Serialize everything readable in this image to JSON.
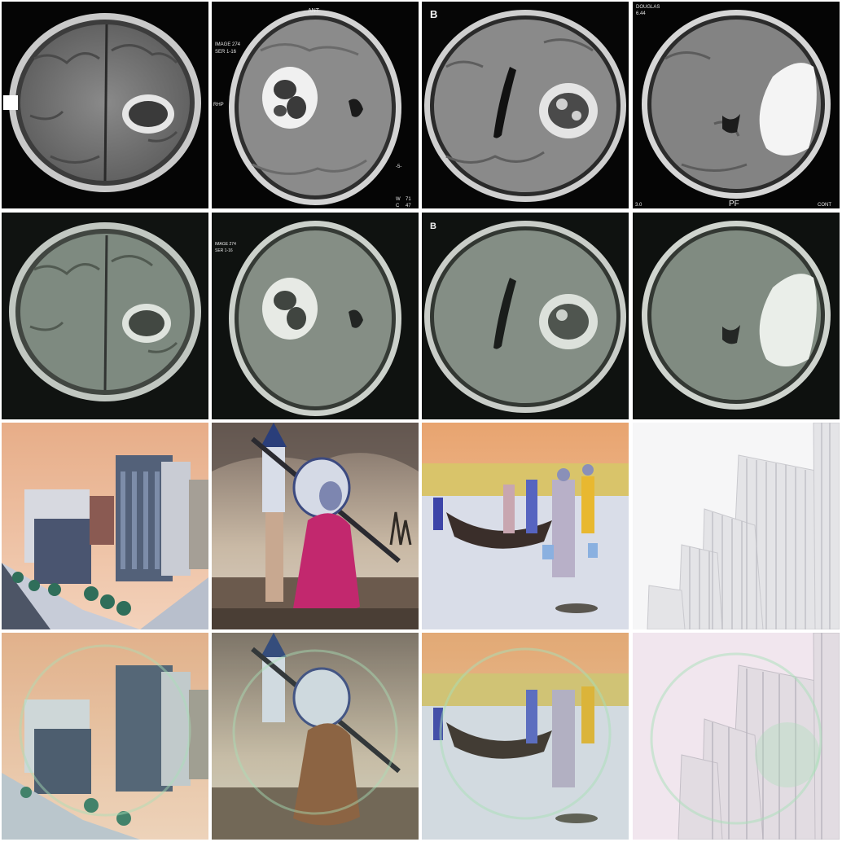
{
  "figure": {
    "rows": [
      {
        "row": "mri-original",
        "cells": [
          {
            "kind": "mri"
          },
          {
            "kind": "mri",
            "labels": {
              "ant": "ANT",
              "image": "IMAGE 274",
              "ser": "SER 1-16",
              "side": "RHP",
              "tick": "-5-",
              "w": "W",
              "w_val": "71",
              "c": "C",
              "c_val": "47"
            }
          },
          {
            "kind": "mri",
            "labels": {
              "panel": "B"
            }
          },
          {
            "kind": "mri",
            "labels": {
              "name": "DOUGLAS",
              "num": "6.44",
              "pf": "PF",
              "cont": "CONT",
              "bottom_left": "3.0"
            }
          }
        ]
      },
      {
        "row": "mri-reconstructed",
        "cells": [
          {
            "kind": "mri"
          },
          {
            "kind": "mri",
            "labels": {
              "image": "IMAGE 274",
              "ser": "SER 1-16"
            }
          },
          {
            "kind": "mri",
            "labels": {
              "panel": "B"
            }
          },
          {
            "kind": "mri"
          }
        ]
      },
      {
        "row": "photo-original",
        "cells": [
          {
            "kind": "photo",
            "subject": "city-buildings"
          },
          {
            "kind": "photo",
            "subject": "boat-women-conical-hats"
          },
          {
            "kind": "photo",
            "subject": "beach-fishermen-boat"
          },
          {
            "kind": "photo",
            "subject": "white-architecture-ribs"
          }
        ]
      },
      {
        "row": "photo-reconstructed",
        "cells": [
          {
            "kind": "photo",
            "subject": "city-buildings"
          },
          {
            "kind": "photo",
            "subject": "boat-women-conical-hats"
          },
          {
            "kind": "photo",
            "subject": "beach-fishermen-boat"
          },
          {
            "kind": "photo",
            "subject": "white-architecture-ribs"
          }
        ]
      }
    ],
    "colors": {
      "background": "#ffffff",
      "mri_black": "#000000",
      "mri_brain": "#7d7d7d",
      "mri_rim": "#d8d8d8",
      "sky_peach": "#e9b48f",
      "pink_dress": "#c2286e",
      "sand": "#d9dde8",
      "white_arch": "#f2f2f4",
      "recon_tint": "#a8e0b8"
    }
  }
}
